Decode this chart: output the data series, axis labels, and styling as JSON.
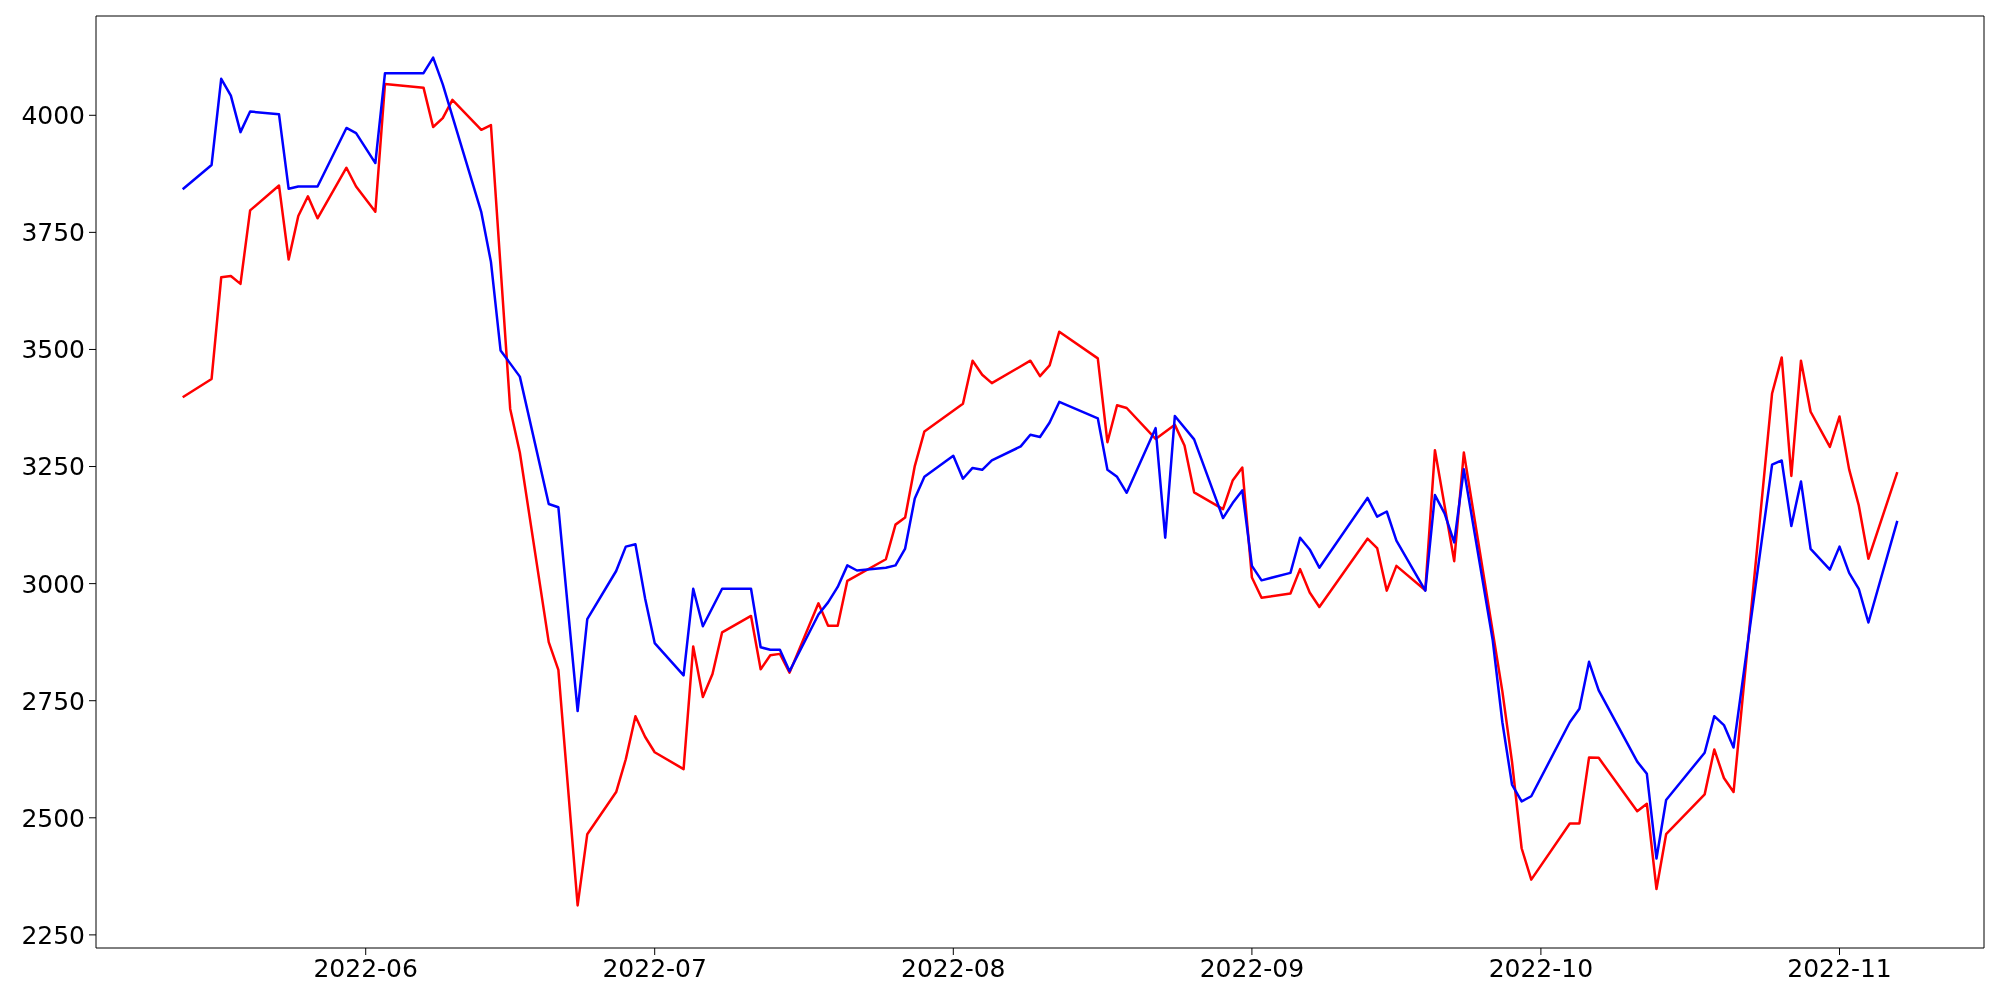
{
  "chart_data": {
    "type": "line",
    "xlim": [
      "2022-05-04",
      "2022-11-16"
    ],
    "xticks": [
      "2022-06",
      "2022-07",
      "2022-08",
      "2022-09",
      "2022-10",
      "2022-11"
    ],
    "ylim": [
      2222,
      4212
    ],
    "yticks": [
      2250,
      2500,
      2750,
      3000,
      3250,
      3500,
      3750,
      4000
    ],
    "grid": false,
    "marker": "none",
    "line_style": "solid",
    "series": [
      {
        "color": "#ff0000",
        "x": [
          "2022-05-13",
          "2022-05-16",
          "2022-05-17",
          "2022-05-18",
          "2022-05-19",
          "2022-05-20",
          "2022-05-23",
          "2022-05-24",
          "2022-05-25",
          "2022-05-26",
          "2022-05-27",
          "2022-05-30",
          "2022-05-31",
          "2022-06-02",
          "2022-06-03",
          "2022-06-07",
          "2022-06-08",
          "2022-06-09",
          "2022-06-10",
          "2022-06-13",
          "2022-06-14",
          "2022-06-16",
          "2022-06-17",
          "2022-06-20",
          "2022-06-21",
          "2022-06-23",
          "2022-06-24",
          "2022-06-27",
          "2022-06-28",
          "2022-06-29",
          "2022-06-30",
          "2022-07-01",
          "2022-07-04",
          "2022-07-05",
          "2022-07-06",
          "2022-07-07",
          "2022-07-08",
          "2022-07-11",
          "2022-07-12",
          "2022-07-13",
          "2022-07-14",
          "2022-07-15",
          "2022-07-18",
          "2022-07-19",
          "2022-07-20",
          "2022-07-21",
          "2022-07-25",
          "2022-07-26",
          "2022-07-27",
          "2022-07-28",
          "2022-07-29",
          "2022-08-02",
          "2022-08-03",
          "2022-08-04",
          "2022-08-05",
          "2022-08-09",
          "2022-08-10",
          "2022-08-11",
          "2022-08-12",
          "2022-08-16",
          "2022-08-17",
          "2022-08-18",
          "2022-08-19",
          "2022-08-22",
          "2022-08-24",
          "2022-08-25",
          "2022-08-26",
          "2022-08-29",
          "2022-08-30",
          "2022-08-31",
          "2022-09-01",
          "2022-09-02",
          "2022-09-05",
          "2022-09-06",
          "2022-09-07",
          "2022-09-08",
          "2022-09-13",
          "2022-09-14",
          "2022-09-15",
          "2022-09-16",
          "2022-09-19",
          "2022-09-20",
          "2022-09-22",
          "2022-09-23",
          "2022-09-27",
          "2022-09-28",
          "2022-09-29",
          "2022-09-30",
          "2022-10-04",
          "2022-10-05",
          "2022-10-06",
          "2022-10-07",
          "2022-10-11",
          "2022-10-12",
          "2022-10-13",
          "2022-10-14",
          "2022-10-18",
          "2022-10-19",
          "2022-10-20",
          "2022-10-21",
          "2022-10-25",
          "2022-10-26",
          "2022-10-27",
          "2022-10-28",
          "2022-10-29",
          "2022-10-31",
          "2022-11-01",
          "2022-11-02",
          "2022-11-03",
          "2022-11-04",
          "2022-11-07"
        ],
        "values": [
          3398,
          3437,
          3654,
          3657,
          3640,
          3797,
          3850,
          3692,
          3785,
          3827,
          3780,
          3888,
          3848,
          3794,
          4067,
          4059,
          3975,
          3994,
          4033,
          3969,
          3979,
          3373,
          3280,
          2875,
          2816,
          2313,
          2465,
          2555,
          2625,
          2717,
          2673,
          2640,
          2604,
          2866,
          2758,
          2807,
          2896,
          2931,
          2817,
          2847,
          2850,
          2810,
          2958,
          2910,
          2910,
          3006,
          3052,
          3126,
          3141,
          3251,
          3325,
          3384,
          3476,
          3446,
          3428,
          3476,
          3443,
          3466,
          3538,
          3481,
          3302,
          3381,
          3375,
          3309,
          3339,
          3295,
          3195,
          3159,
          3220,
          3248,
          3013,
          2970,
          2979,
          3031,
          2981,
          2950,
          3096,
          3076,
          2985,
          3038,
          2986,
          3285,
          3048,
          3280,
          2770,
          2620,
          2435,
          2368,
          2488,
          2488,
          2629,
          2628,
          2514,
          2530,
          2348,
          2465,
          2550,
          2646,
          2585,
          2555,
          3406,
          3483,
          3230,
          3476,
          3367,
          3292,
          3357,
          3244,
          3167,
          3053,
          3238
        ]
      },
      {
        "color": "#0000ff",
        "x": [
          "2022-05-13",
          "2022-05-16",
          "2022-05-17",
          "2022-05-18",
          "2022-05-19",
          "2022-05-20",
          "2022-05-23",
          "2022-05-24",
          "2022-05-25",
          "2022-05-27",
          "2022-05-30",
          "2022-05-31",
          "2022-06-02",
          "2022-06-03",
          "2022-06-07",
          "2022-06-08",
          "2022-06-09",
          "2022-06-13",
          "2022-06-14",
          "2022-06-15",
          "2022-06-17",
          "2022-06-20",
          "2022-06-21",
          "2022-06-23",
          "2022-06-24",
          "2022-06-27",
          "2022-06-28",
          "2022-06-29",
          "2022-06-30",
          "2022-07-01",
          "2022-07-04",
          "2022-07-05",
          "2022-07-06",
          "2022-07-08",
          "2022-07-11",
          "2022-07-12",
          "2022-07-13",
          "2022-07-14",
          "2022-07-15",
          "2022-07-18",
          "2022-07-19",
          "2022-07-20",
          "2022-07-21",
          "2022-07-22",
          "2022-07-25",
          "2022-07-26",
          "2022-07-27",
          "2022-07-28",
          "2022-07-29",
          "2022-08-01",
          "2022-08-02",
          "2022-08-03",
          "2022-08-04",
          "2022-08-05",
          "2022-08-08",
          "2022-08-09",
          "2022-08-10",
          "2022-08-11",
          "2022-08-12",
          "2022-08-16",
          "2022-08-17",
          "2022-08-18",
          "2022-08-19",
          "2022-08-22",
          "2022-08-23",
          "2022-08-24",
          "2022-08-26",
          "2022-08-29",
          "2022-08-30",
          "2022-08-31",
          "2022-09-01",
          "2022-09-02",
          "2022-09-05",
          "2022-09-06",
          "2022-09-07",
          "2022-09-08",
          "2022-09-13",
          "2022-09-14",
          "2022-09-15",
          "2022-09-16",
          "2022-09-19",
          "2022-09-20",
          "2022-09-21",
          "2022-09-22",
          "2022-09-23",
          "2022-09-26",
          "2022-09-27",
          "2022-09-28",
          "2022-09-29",
          "2022-09-30",
          "2022-10-04",
          "2022-10-05",
          "2022-10-06",
          "2022-10-07",
          "2022-10-11",
          "2022-10-12",
          "2022-10-13",
          "2022-10-14",
          "2022-10-18",
          "2022-10-19",
          "2022-10-20",
          "2022-10-21",
          "2022-10-25",
          "2022-10-26",
          "2022-10-27",
          "2022-10-28",
          "2022-10-29",
          "2022-10-31",
          "2022-11-01",
          "2022-11-02",
          "2022-11-03",
          "2022-11-04",
          "2022-11-07"
        ],
        "values": [
          3842,
          3894,
          4078,
          4042,
          3964,
          4008,
          4002,
          3843,
          3848,
          3848,
          3973,
          3962,
          3898,
          4090,
          4090,
          4123,
          4066,
          3793,
          3687,
          3498,
          3442,
          3170,
          3163,
          2728,
          2924,
          3027,
          3079,
          3084,
          2969,
          2873,
          2804,
          2989,
          2909,
          2989,
          2989,
          2864,
          2859,
          2859,
          2813,
          2934,
          2960,
          2993,
          3039,
          3028,
          3034,
          3039,
          3075,
          3182,
          3228,
          3273,
          3224,
          3247,
          3243,
          3263,
          3293,
          3318,
          3313,
          3344,
          3388,
          3353,
          3243,
          3228,
          3194,
          3332,
          3098,
          3358,
          3308,
          3140,
          3172,
          3199,
          3038,
          3007,
          3023,
          3098,
          3073,
          3034,
          3183,
          3143,
          3154,
          3092,
          2985,
          3189,
          3150,
          3088,
          3244,
          2879,
          2704,
          2571,
          2535,
          2546,
          2704,
          2733,
          2833,
          2772,
          2620,
          2594,
          2413,
          2538,
          2639,
          2717,
          2698,
          2650,
          3254,
          3263,
          3123,
          3218,
          3074,
          3030,
          3079,
          3023,
          2989,
          2917,
          3134
        ]
      }
    ]
  }
}
